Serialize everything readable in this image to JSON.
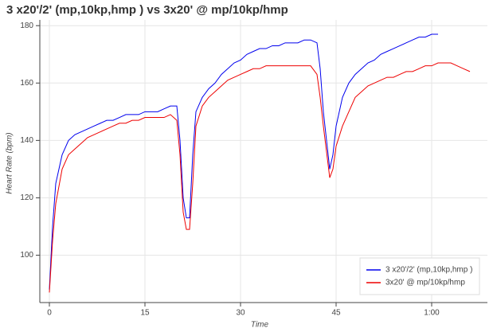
{
  "chart_data": {
    "type": "line",
    "title": "3 x20'/2' (mp,10kp,hmp ) vs 3x20' @ mp/10kp/hmp",
    "x_label": "Time",
    "y_label": "Heart Rate (bpm)",
    "xlim": [
      -1.5,
      68.75
    ],
    "ylim": [
      83.5,
      182
    ],
    "xticks": [
      0,
      15,
      30,
      45,
      {
        "value": 60,
        "label": "1:00"
      }
    ],
    "yticks": [
      100,
      120,
      140,
      160,
      180
    ],
    "grid": true,
    "legend": "bottom-right",
    "series": [
      {
        "name": "3 x20'/2' (mp,10kp,hmp )",
        "color": "#0000ee",
        "x": [
          0,
          0.5,
          1,
          1.5,
          2,
          3,
          4,
          5,
          6,
          7,
          8,
          9,
          10,
          11,
          12,
          13,
          14,
          15,
          16,
          17,
          18,
          19,
          20,
          20.5,
          21,
          21.5,
          22,
          22.5,
          23,
          24,
          25,
          26,
          27,
          28,
          29,
          30,
          31,
          32,
          33,
          34,
          35,
          36,
          37,
          38,
          39,
          40,
          41,
          42,
          42.5,
          43,
          44,
          44.5,
          45,
          46,
          47,
          48,
          49,
          50,
          51,
          52,
          53,
          54,
          55,
          56,
          57,
          58,
          59,
          60,
          61
        ],
        "values": [
          88,
          110,
          125,
          130,
          135,
          140,
          142,
          143,
          144,
          145,
          146,
          147,
          147,
          148,
          149,
          149,
          149,
          150,
          150,
          150,
          151,
          152,
          152,
          140,
          120,
          113,
          113,
          135,
          150,
          155,
          158,
          160,
          163,
          165,
          167,
          168,
          170,
          171,
          172,
          172,
          173,
          173,
          174,
          174,
          174,
          175,
          175,
          174,
          165,
          150,
          130,
          135,
          145,
          155,
          160,
          163,
          165,
          167,
          168,
          170,
          171,
          172,
          173,
          174,
          175,
          176,
          176,
          177,
          177
        ]
      },
      {
        "name": "3x20' @ mp/10kp/hmp",
        "color": "#ee0000",
        "x": [
          0,
          0.5,
          1,
          2,
          3,
          4,
          5,
          6,
          7,
          8,
          9,
          10,
          11,
          12,
          13,
          14,
          15,
          16,
          17,
          18,
          19,
          20,
          20.5,
          21,
          21.5,
          22,
          22.5,
          23,
          24,
          25,
          26,
          27,
          28,
          29,
          30,
          31,
          32,
          33,
          34,
          35,
          36,
          37,
          38,
          39,
          40,
          41,
          42,
          42.5,
          43,
          44,
          44.5,
          45,
          46,
          47,
          48,
          49,
          50,
          51,
          52,
          53,
          54,
          55,
          56,
          57,
          58,
          59,
          60,
          61,
          62,
          63,
          64,
          65,
          66
        ],
        "values": [
          87,
          105,
          118,
          130,
          135,
          137,
          139,
          141,
          142,
          143,
          144,
          145,
          146,
          146,
          147,
          147,
          148,
          148,
          148,
          148,
          149,
          147,
          135,
          115,
          109,
          109,
          125,
          145,
          152,
          155,
          157,
          159,
          161,
          162,
          163,
          164,
          165,
          165,
          166,
          166,
          166,
          166,
          166,
          166,
          166,
          166,
          163,
          155,
          145,
          127,
          130,
          138,
          145,
          150,
          155,
          157,
          159,
          160,
          161,
          162,
          162,
          163,
          164,
          164,
          165,
          166,
          166,
          167,
          167,
          167,
          166,
          165,
          164
        ]
      }
    ]
  }
}
